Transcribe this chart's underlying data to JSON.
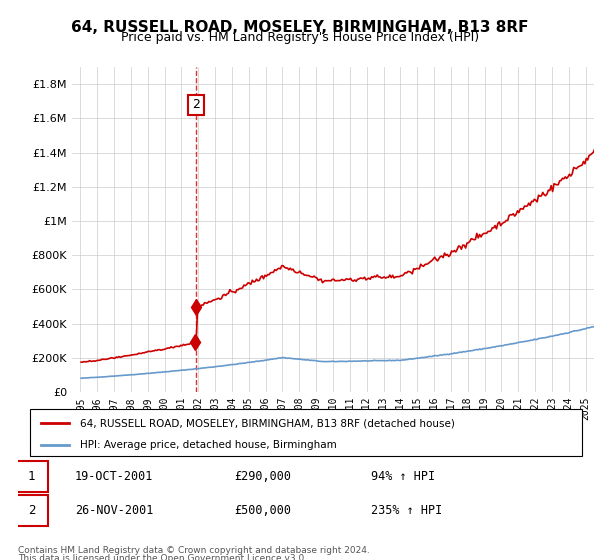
{
  "title": "64, RUSSELL ROAD, MOSELEY, BIRMINGHAM, B13 8RF",
  "subtitle": "Price paid vs. HM Land Registry's House Price Index (HPI)",
  "xlabel": "",
  "ylabel": "",
  "background_color": "#ffffff",
  "grid_color": "#cccccc",
  "sale1_date_num": 2001.8,
  "sale1_price": 290000,
  "sale1_label": "1",
  "sale1_date_str": "19-OCT-2001",
  "sale1_pct": "94%",
  "sale2_date_num": 2001.92,
  "sale2_price": 500000,
  "sale2_label": "2",
  "sale2_date_str": "26-NOV-2001",
  "sale2_pct": "235%",
  "legend_line1": "64, RUSSELL ROAD, MOSELEY, BIRMINGHAM, B13 8RF (detached house)",
  "legend_line2": "HPI: Average price, detached house, Birmingham",
  "footer1": "Contains HM Land Registry data © Crown copyright and database right 2024.",
  "footer2": "This data is licensed under the Open Government Licence v3.0.",
  "red_color": "#cc0000",
  "blue_color": "#6699cc",
  "annotation_box_color": "#cc0000",
  "dashed_line_color": "#cc0000",
  "ylim_max": 1900000,
  "xmin": 1994.5,
  "xmax": 2025.5
}
